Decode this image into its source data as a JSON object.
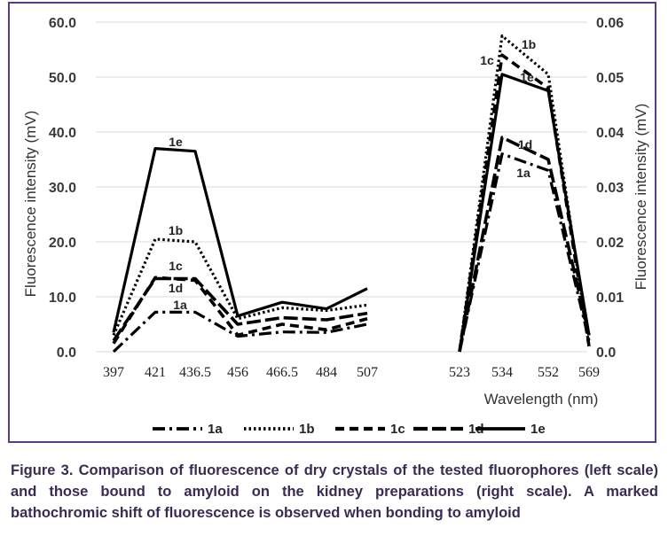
{
  "chart_data": {
    "type": "line",
    "title": "",
    "xlabel": "Wavelength (nm)",
    "ylabel_left": "Fluorescence intensity (mV)",
    "ylabel_right": "Fluorescence intensity (mV)",
    "ylim_left": [
      0,
      60
    ],
    "ylim_right": [
      0,
      0.06
    ],
    "yticks_left": [
      "0.0",
      "10.0",
      "20.0",
      "30.0",
      "40.0",
      "50.0",
      "60.0"
    ],
    "yticks_right": [
      "0.0",
      "0.01",
      "0.02",
      "0.03",
      "0.04",
      "0.05",
      "0.06"
    ],
    "grid": true,
    "legend_position": "bottom",
    "categories_left": [
      "397",
      "421",
      "436.5",
      "456",
      "466.5",
      "484",
      "507"
    ],
    "categories_right": [
      "523",
      "534",
      "552",
      "569"
    ],
    "series": [
      {
        "name": "1a",
        "style": "dash-dot",
        "left": [
          0,
          7.2,
          7.2,
          2.8,
          3.6,
          3.5,
          5.0
        ],
        "right": [
          0,
          0.036,
          0.033,
          0.002
        ]
      },
      {
        "name": "1b",
        "style": "dotted",
        "left": [
          3.0,
          20.5,
          20.0,
          6.0,
          8.0,
          7.5,
          8.5
        ],
        "right": [
          0,
          0.0575,
          0.0505,
          0.001
        ]
      },
      {
        "name": "1c",
        "style": "short-dash",
        "left": [
          1.5,
          13.5,
          13.0,
          3.0,
          5.0,
          4.0,
          6.0
        ],
        "right": [
          0,
          0.054,
          0.048,
          0.001
        ]
      },
      {
        "name": "1d",
        "style": "long-dash",
        "left": [
          2.0,
          13.3,
          13.3,
          5.0,
          6.2,
          5.8,
          7.0
        ],
        "right": [
          0,
          0.039,
          0.035,
          0.003
        ]
      },
      {
        "name": "1e",
        "style": "solid",
        "left": [
          3.5,
          37.0,
          36.5,
          6.5,
          9.0,
          7.8,
          11.5
        ],
        "right": [
          0,
          0.0505,
          0.0475,
          0.003
        ]
      }
    ],
    "annotations": [
      "1e",
      "1b",
      "1c",
      "1d",
      "1a",
      "1b",
      "1c",
      "1e",
      "1d",
      "1a"
    ]
  },
  "caption": {
    "label": "Figure 3.",
    "text": "Comparison of fluorescence of dry crystals of the tested fluorophores (left scale) and those bound to amyloid on the kidney preparations (right scale). A marked bathochromic shift of fluorescence is observed when bonding to amyloid"
  },
  "colors": {
    "frame": "#5b3b7a",
    "caption_text": "#3b2b52",
    "series": "#000000",
    "grid": "#d9d9d9"
  }
}
